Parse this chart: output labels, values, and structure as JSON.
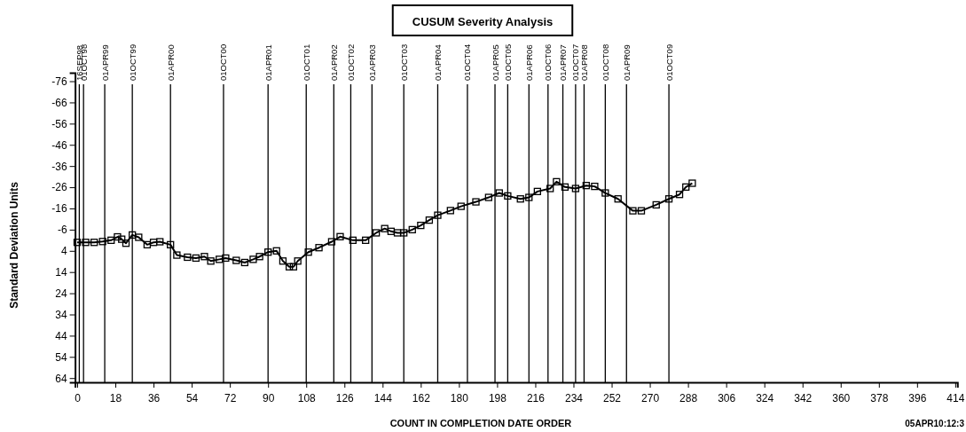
{
  "chart_data": {
    "type": "line",
    "title": "CUSUM Severity Analysis",
    "xlabel": "COUNT IN COMPLETION DATE ORDER",
    "ylabel": "Standard Deviation Units",
    "annotations": [
      "05APR10:12:3"
    ],
    "xlim": [
      -1,
      415
    ],
    "xticks": [
      0,
      18,
      36,
      54,
      72,
      90,
      108,
      126,
      144,
      162,
      180,
      198,
      216,
      234,
      252,
      270,
      288,
      306,
      324,
      342,
      360,
      378,
      396,
      414
    ],
    "ylim": [
      66,
      -80
    ],
    "yticks": [
      -76,
      -66,
      -56,
      -46,
      -36,
      -26,
      -16,
      -6,
      4,
      14,
      24,
      34,
      44,
      54,
      64
    ],
    "marker": "square",
    "line_style": "solid",
    "grid": false,
    "series": [
      {
        "color": "#000000",
        "x": [
          0,
          4,
          8,
          12,
          16,
          19,
          21,
          23,
          26,
          29,
          33,
          36,
          39,
          44,
          47,
          52,
          56,
          60,
          63,
          67,
          70,
          75,
          79,
          83,
          86,
          90,
          94,
          97,
          100,
          102,
          104,
          109,
          114,
          120,
          124,
          130,
          136,
          141,
          145,
          148,
          151,
          154,
          158,
          162,
          166,
          170,
          176,
          181,
          188,
          194,
          199,
          203,
          209,
          213,
          217,
          223,
          226,
          230,
          235,
          240,
          244,
          249,
          255,
          262,
          266,
          273,
          279,
          284,
          287,
          290
        ],
        "values": [
          0,
          0,
          0,
          -0.4,
          -1,
          -2.6,
          -1.5,
          0.4,
          -3.5,
          -2.4,
          1.1,
          0,
          -0.3,
          1.1,
          6,
          7,
          7.4,
          6.7,
          8.8,
          8,
          7.4,
          8.5,
          9.5,
          8,
          6.7,
          4.6,
          4,
          8.8,
          11.5,
          11.5,
          8.8,
          4.6,
          2.5,
          -0.3,
          -2.7,
          -1,
          -1,
          -4.5,
          -6.5,
          -5.2,
          -4.5,
          -4.5,
          -6,
          -8,
          -10.5,
          -12.8,
          -15,
          -17,
          -19.1,
          -21.2,
          -23.3,
          -21.9,
          -20.5,
          -21.2,
          -24,
          -25.4,
          -28.6,
          -26.1,
          -25.4,
          -26.8,
          -26.4,
          -23.3,
          -20.5,
          -14.9,
          -14.9,
          -17.7,
          -20.5,
          -22.6,
          -26.1,
          -27.9
        ]
      }
    ],
    "ref_lines": [
      {
        "axis": "x",
        "value": 1,
        "label": "16SEP98",
        "color": "#000000"
      },
      {
        "axis": "x",
        "value": 3,
        "label": "01OCT98",
        "color": "#000000"
      },
      {
        "axis": "x",
        "value": 13,
        "label": "01APR99",
        "color": "#000000"
      },
      {
        "axis": "x",
        "value": 26,
        "label": "01OCT99",
        "color": "#000000"
      },
      {
        "axis": "x",
        "value": 44,
        "label": "01APR00",
        "color": "#000000"
      },
      {
        "axis": "x",
        "value": 69,
        "label": "01OCT00",
        "color": "#000000"
      },
      {
        "axis": "x",
        "value": 90,
        "label": "01APR01",
        "color": "#000000"
      },
      {
        "axis": "x",
        "value": 108,
        "label": "01OCT01",
        "color": "#000000"
      },
      {
        "axis": "x",
        "value": 121,
        "label": "01APR02",
        "color": "#000000"
      },
      {
        "axis": "x",
        "value": 129,
        "label": "01OCT02",
        "color": "#000000"
      },
      {
        "axis": "x",
        "value": 139,
        "label": "01APR03",
        "color": "#000000"
      },
      {
        "axis": "x",
        "value": 154,
        "label": "01OCT03",
        "color": "#000000"
      },
      {
        "axis": "x",
        "value": 170,
        "label": "01APR04",
        "color": "#000000"
      },
      {
        "axis": "x",
        "value": 184,
        "label": "01OCT04",
        "color": "#000000"
      },
      {
        "axis": "x",
        "value": 197,
        "label": "01APR05",
        "color": "#000000"
      },
      {
        "axis": "x",
        "value": 203,
        "label": "01OCT05",
        "color": "#000000"
      },
      {
        "axis": "x",
        "value": 213,
        "label": "01APR06",
        "color": "#000000"
      },
      {
        "axis": "x",
        "value": 222,
        "label": "01OCT06",
        "color": "#000000"
      },
      {
        "axis": "x",
        "value": 229,
        "label": "01APR07",
        "color": "#000000"
      },
      {
        "axis": "x",
        "value": 235,
        "label": "01OCT07",
        "color": "#000000"
      },
      {
        "axis": "x",
        "value": 239,
        "label": "01APR08",
        "color": "#000000"
      },
      {
        "axis": "x",
        "value": 249,
        "label": "01OCT08",
        "color": "#000000"
      },
      {
        "axis": "x",
        "value": 259,
        "label": "01APR09",
        "color": "#000000"
      },
      {
        "axis": "x",
        "value": 279,
        "label": "01OCT09",
        "color": "#000000"
      }
    ]
  }
}
